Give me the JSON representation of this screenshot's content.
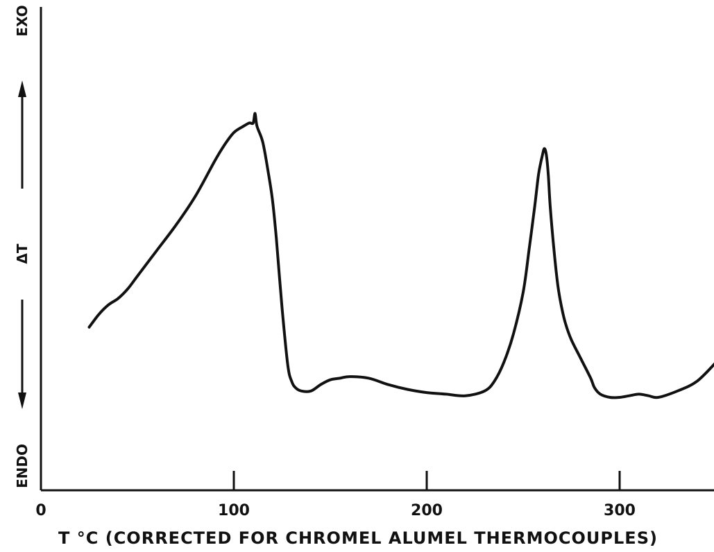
{
  "chart_data": {
    "type": "line",
    "xlabel": "T °C (CORRECTED FOR CHROMEL ALUMEL THERMOCOUPLES)",
    "ylabel": "ΔT",
    "y_top_label": "EXO",
    "y_bottom_label": "ENDO",
    "xlim": [
      0,
      350
    ],
    "x_ticks": [
      0,
      100,
      200,
      300
    ],
    "y_ticks": [],
    "grid": false,
    "legend": "none",
    "series": [
      {
        "x": [
          25,
          30,
          35,
          40,
          45,
          50,
          60,
          70,
          80,
          90,
          95,
          100,
          105,
          108,
          110,
          111,
          112,
          115,
          118,
          120,
          122,
          125,
          128,
          130,
          132,
          135,
          140,
          145,
          150,
          155,
          160,
          170,
          180,
          190,
          200,
          210,
          220,
          230,
          235,
          240,
          245,
          250,
          253,
          256,
          258,
          260,
          261,
          262,
          263,
          264,
          266,
          268,
          270,
          272,
          275,
          280,
          285,
          287,
          290,
          295,
          300,
          305,
          310,
          315,
          320,
          330,
          340,
          350
        ],
        "y": [
          0.22,
          0.26,
          0.29,
          0.31,
          0.34,
          0.38,
          0.46,
          0.54,
          0.63,
          0.74,
          0.79,
          0.83,
          0.85,
          0.86,
          0.86,
          0.89,
          0.85,
          0.8,
          0.7,
          0.62,
          0.5,
          0.28,
          0.1,
          0.05,
          0.03,
          0.02,
          0.02,
          0.04,
          0.055,
          0.06,
          0.065,
          0.06,
          0.04,
          0.025,
          0.015,
          0.01,
          0.005,
          0.02,
          0.05,
          0.11,
          0.2,
          0.33,
          0.46,
          0.6,
          0.7,
          0.76,
          0.78,
          0.76,
          0.7,
          0.6,
          0.46,
          0.35,
          0.28,
          0.23,
          0.18,
          0.12,
          0.06,
          0.03,
          0.01,
          0.0,
          0.0,
          0.005,
          0.01,
          0.005,
          0.0,
          0.02,
          0.05,
          0.11
        ]
      }
    ]
  }
}
